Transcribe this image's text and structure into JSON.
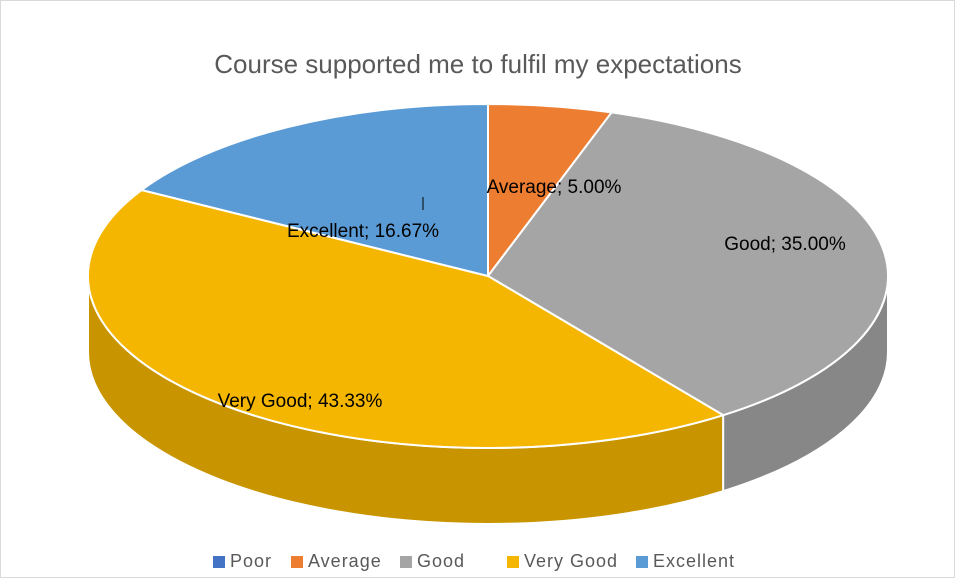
{
  "chart_data": {
    "type": "pie3d",
    "title": "Course supported me to fulfil my expectations",
    "categories": [
      "Poor",
      "Average",
      "Good",
      "Very Good",
      "Excellent"
    ],
    "values": [
      0,
      5,
      35,
      43.33,
      16.67
    ],
    "value_labels": [
      null,
      "Average; 5.00%",
      "Good; 35.00%",
      "Very Good; 43.33%",
      "Excellent; 16.67%"
    ],
    "colors": [
      "#4472c4",
      "#ed7d31",
      "#a5a5a5",
      "#f4b600",
      "#5b9bd5"
    ],
    "legend": "bottom"
  }
}
